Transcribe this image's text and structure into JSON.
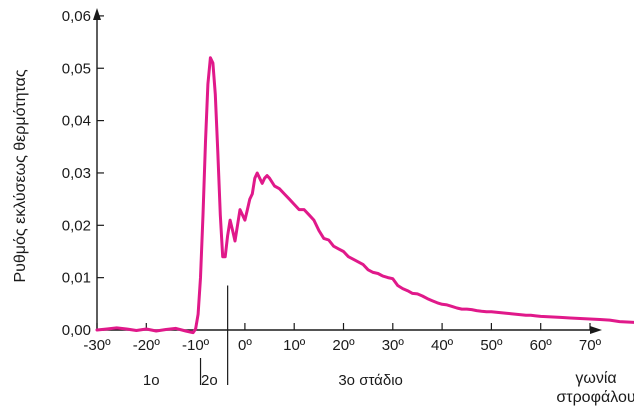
{
  "chart_data": {
    "type": "line",
    "title": "",
    "ylabel": "Ρυθμός εκλύσεως θερμότητας",
    "xlabel": [
      "γωνία",
      "στροφάλου"
    ],
    "xlim": [
      -30,
      80
    ],
    "ylim": [
      0,
      0.06
    ],
    "x_ticks": [
      -30,
      -20,
      -10,
      0,
      10,
      20,
      30,
      40,
      50,
      60,
      70
    ],
    "x_tick_labels": [
      "-30º",
      "-20º",
      "-10º",
      "0º",
      "10º",
      "20º",
      "30º",
      "40º",
      "50º",
      "60º",
      "70º"
    ],
    "y_ticks": [
      0,
      0.01,
      0.02,
      0.03,
      0.04,
      0.05,
      0.06
    ],
    "y_tick_labels": [
      "0,00",
      "0,01",
      "0,02",
      "0,03",
      "0,04",
      "0,05",
      "0,06"
    ],
    "grid": false,
    "series_color": "#e0198a",
    "stage_labels": [
      {
        "text": "1ο",
        "x": -19
      },
      {
        "text": "2ο",
        "x": -7.2
      },
      {
        "text": "3ο στάδιο",
        "x": 25.5
      }
    ],
    "stage_boundaries": [
      -9,
      -3.5
    ],
    "series": [
      {
        "x": [
          -30,
          -28,
          -26,
          -24,
          -22,
          -20,
          -18,
          -16,
          -14,
          -12,
          -11,
          -10.5,
          -10,
          -9.5,
          -9,
          -8.5,
          -8,
          -7.5,
          -7,
          -6.5,
          -6,
          -5.5,
          -5,
          -4.5,
          -4,
          -3.5,
          -3,
          -2.5,
          -2,
          -1.5,
          -1,
          -0.5,
          0,
          0.5,
          1,
          1.5,
          2,
          2.5,
          3,
          3.5,
          4,
          4.5,
          5,
          6,
          7,
          8,
          9,
          10,
          11,
          12,
          13,
          14,
          15,
          16,
          17,
          18,
          19,
          20,
          21,
          22,
          23,
          24,
          25,
          26,
          27,
          28,
          29,
          30,
          31,
          32,
          33,
          34,
          35,
          36,
          37,
          38,
          39,
          40,
          41,
          42,
          43,
          44,
          45,
          46,
          47,
          48,
          49,
          50,
          51,
          52,
          53,
          54,
          55,
          56,
          57,
          58,
          59,
          60,
          62,
          64,
          66,
          68,
          70,
          72,
          74,
          76,
          78,
          80
        ],
        "y": [
          0.0,
          0.0002,
          0.0004,
          0.0002,
          -0.0001,
          0.0002,
          -0.0002,
          0.0001,
          0.0003,
          -0.0002,
          -0.0004,
          -0.0005,
          0.0002,
          0.003,
          0.01,
          0.022,
          0.036,
          0.047,
          0.052,
          0.051,
          0.045,
          0.034,
          0.022,
          0.014,
          0.014,
          0.018,
          0.021,
          0.019,
          0.017,
          0.02,
          0.023,
          0.022,
          0.021,
          0.023,
          0.025,
          0.026,
          0.029,
          0.03,
          0.029,
          0.028,
          0.029,
          0.0295,
          0.029,
          0.0275,
          0.027,
          0.026,
          0.025,
          0.024,
          0.023,
          0.023,
          0.022,
          0.021,
          0.019,
          0.0175,
          0.0172,
          0.016,
          0.0155,
          0.015,
          0.014,
          0.0135,
          0.013,
          0.0125,
          0.0115,
          0.011,
          0.0108,
          0.0103,
          0.01,
          0.0098,
          0.0085,
          0.0079,
          0.0075,
          0.007,
          0.0069,
          0.0065,
          0.006,
          0.0056,
          0.0052,
          0.0049,
          0.0048,
          0.0045,
          0.0042,
          0.004,
          0.004,
          0.0039,
          0.0037,
          0.0036,
          0.0035,
          0.0035,
          0.0034,
          0.0033,
          0.0032,
          0.0031,
          0.003,
          0.0029,
          0.0028,
          0.0028,
          0.0027,
          0.0026,
          0.0025,
          0.0024,
          0.0023,
          0.0022,
          0.0021,
          0.002,
          0.0019,
          0.0016,
          0.0015,
          0.0014
        ]
      }
    ]
  }
}
